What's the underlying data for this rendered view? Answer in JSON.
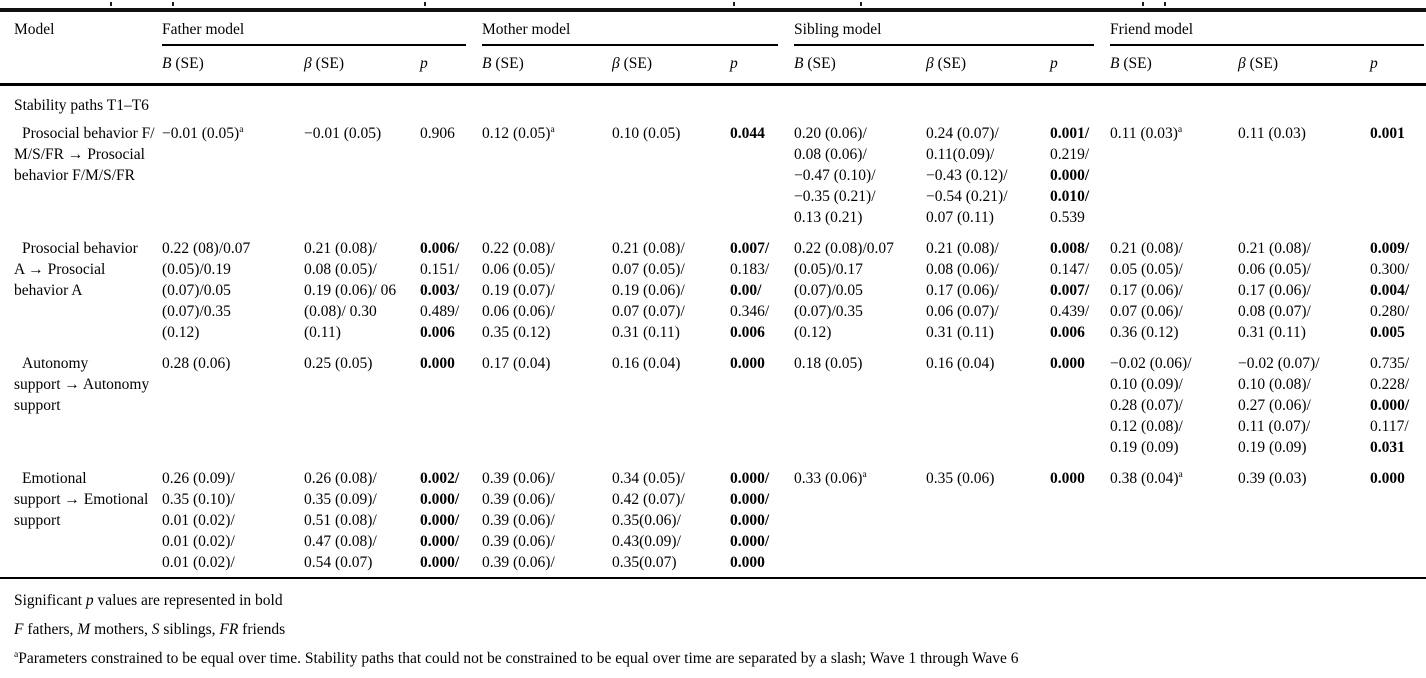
{
  "table": {
    "model_column_header": "Model",
    "groups": [
      {
        "key": "father",
        "label": "Father model"
      },
      {
        "key": "mother",
        "label": "Mother model"
      },
      {
        "key": "sibling",
        "label": "Sibling model"
      },
      {
        "key": "friend",
        "label": "Friend model"
      }
    ],
    "stat_headers": [
      {
        "key": "b",
        "segments": [
          {
            "t": "B",
            "i": true
          },
          {
            "t": " (SE)"
          }
        ]
      },
      {
        "key": "beta",
        "segments": [
          {
            "t": "β",
            "i": true
          },
          {
            "t": " (SE)"
          }
        ]
      },
      {
        "key": "p",
        "segments": [
          {
            "t": "p",
            "i": true
          }
        ]
      }
    ],
    "section_header": "Stability paths T1–T6",
    "rows": [
      {
        "model_lines": [
          "Prosocial behavior F/",
          "M/S/FR → Prosocial",
          "behavior F/M/S/FR"
        ],
        "father": {
          "b": [
            {
              "t": "−0.01 (0.05)",
              "sup": "a"
            }
          ],
          "beta": [
            {
              "t": "−0.01 (0.05)"
            }
          ],
          "p": [
            {
              "t": "0.906"
            }
          ]
        },
        "mother": {
          "b": [
            {
              "t": "0.12 (0.05)",
              "sup": "a"
            }
          ],
          "beta": [
            {
              "t": "0.10 (0.05)"
            }
          ],
          "p": [
            {
              "t": "0.044",
              "bold": true
            }
          ]
        },
        "sibling": {
          "b": [
            {
              "t": "0.20 (0.06)/"
            },
            {
              "t": "0.08 (0.06)/"
            },
            {
              "t": "−0.47 (0.10)/"
            },
            {
              "t": "−0.35 (0.21)/"
            },
            {
              "t": "0.13 (0.21)"
            }
          ],
          "beta": [
            {
              "t": "0.24 (0.07)/"
            },
            {
              "t": "0.11(0.09)/"
            },
            {
              "t": "−0.43 (0.12)/"
            },
            {
              "t": "−0.54 (0.21)/"
            },
            {
              "t": "0.07 (0.11)"
            }
          ],
          "p": [
            {
              "t": "0.001/",
              "bold": true
            },
            {
              "t": "0.219/"
            },
            {
              "t": "0.000/",
              "bold": true
            },
            {
              "t": "0.010/",
              "bold": true
            },
            {
              "t": "0.539"
            }
          ]
        },
        "friend": {
          "b": [
            {
              "t": "0.11 (0.03)",
              "sup": "a"
            }
          ],
          "beta": [
            {
              "t": "0.11 (0.03)"
            }
          ],
          "p": [
            {
              "t": "0.001",
              "bold": true
            }
          ]
        }
      },
      {
        "model_lines": [
          "Prosocial behavior",
          "A → Prosocial",
          "behavior A"
        ],
        "father": {
          "b": [
            {
              "t": "0.22 (08)/0.07"
            },
            {
              "t": "(0.05)/0.19"
            },
            {
              "t": "(0.07)/0.05"
            },
            {
              "t": "(0.07)/0.35"
            },
            {
              "t": "(0.12)"
            }
          ],
          "beta": [
            {
              "t": "0.21 (0.08)/"
            },
            {
              "t": "0.08 (0.05)/"
            },
            {
              "t": "0.19 (0.06)/ 06"
            },
            {
              "t": "(0.08)/ 0.30"
            },
            {
              "t": "(0.11)"
            }
          ],
          "p": [
            {
              "t": "0.006/",
              "bold": true
            },
            {
              "t": "0.151/"
            },
            {
              "t": "0.003/",
              "bold": true
            },
            {
              "t": "0.489/"
            },
            {
              "t": "0.006",
              "bold": true
            }
          ]
        },
        "mother": {
          "b": [
            {
              "t": "0.22 (0.08)/"
            },
            {
              "t": "0.06 (0.05)/"
            },
            {
              "t": "0.19 (0.07)/"
            },
            {
              "t": "0.06 (0.06)/"
            },
            {
              "t": "0.35 (0.12)"
            }
          ],
          "beta": [
            {
              "t": "0.21 (0.08)/"
            },
            {
              "t": "0.07 (0.05)/"
            },
            {
              "t": "0.19 (0.06)/"
            },
            {
              "t": "0.07 (0.07)/"
            },
            {
              "t": "0.31 (0.11)"
            }
          ],
          "p": [
            {
              "t": "0.007/",
              "bold": true
            },
            {
              "t": "0.183/"
            },
            {
              "t": "0.00/",
              "bold": true
            },
            {
              "t": "0.346/"
            },
            {
              "t": "0.006",
              "bold": true
            }
          ]
        },
        "sibling": {
          "b": [
            {
              "t": "0.22 (0.08)/0.07"
            },
            {
              "t": "(0.05)/0.17"
            },
            {
              "t": "(0.07)/0.05"
            },
            {
              "t": "(0.07)/0.35"
            },
            {
              "t": "(0.12)"
            }
          ],
          "beta": [
            {
              "t": "0.21 (0.08)/"
            },
            {
              "t": "0.08 (0.06)/"
            },
            {
              "t": "0.17 (0.06)/"
            },
            {
              "t": "0.06 (0.07)/"
            },
            {
              "t": "0.31 (0.11)"
            }
          ],
          "p": [
            {
              "t": "0.008/",
              "bold": true
            },
            {
              "t": "0.147/"
            },
            {
              "t": "0.007/",
              "bold": true
            },
            {
              "t": "0.439/"
            },
            {
              "t": "0.006",
              "bold": true
            }
          ]
        },
        "friend": {
          "b": [
            {
              "t": "0.21 (0.08)/"
            },
            {
              "t": "0.05 (0.05)/"
            },
            {
              "t": "0.17 (0.06)/"
            },
            {
              "t": "0.07 (0.06)/"
            },
            {
              "t": "0.36 (0.12)"
            }
          ],
          "beta": [
            {
              "t": "0.21 (0.08)/"
            },
            {
              "t": "0.06 (0.05)/"
            },
            {
              "t": "0.17 (0.06)/"
            },
            {
              "t": "0.08 (0.07)/"
            },
            {
              "t": "0.31 (0.11)"
            }
          ],
          "p": [
            {
              "t": "0.009/",
              "bold": true
            },
            {
              "t": "0.300/"
            },
            {
              "t": "0.004/",
              "bold": true
            },
            {
              "t": "0.280/"
            },
            {
              "t": "0.005",
              "bold": true
            }
          ]
        }
      },
      {
        "model_lines": [
          "Autonomy",
          "support → Autonomy",
          "support"
        ],
        "father": {
          "b": [
            {
              "t": "0.28 (0.06)"
            }
          ],
          "beta": [
            {
              "t": "0.25 (0.05)"
            }
          ],
          "p": [
            {
              "t": "0.000",
              "bold": true
            }
          ]
        },
        "mother": {
          "b": [
            {
              "t": "0.17 (0.04)"
            }
          ],
          "beta": [
            {
              "t": "0.16 (0.04)"
            }
          ],
          "p": [
            {
              "t": "0.000",
              "bold": true
            }
          ]
        },
        "sibling": {
          "b": [
            {
              "t": "0.18 (0.05)"
            }
          ],
          "beta": [
            {
              "t": "0.16 (0.04)"
            }
          ],
          "p": [
            {
              "t": "0.000",
              "bold": true
            }
          ]
        },
        "friend": {
          "b": [
            {
              "t": "−0.02 (0.06)/"
            },
            {
              "t": "0.10 (0.09)/"
            },
            {
              "t": "0.28 (0.07)/"
            },
            {
              "t": "0.12 (0.08)/"
            },
            {
              "t": "0.19 (0.09)"
            }
          ],
          "beta": [
            {
              "t": "−0.02 (0.07)/"
            },
            {
              "t": "0.10 (0.08)/"
            },
            {
              "t": "0.27 (0.06)/"
            },
            {
              "t": "0.11 (0.07)/"
            },
            {
              "t": "0.19 (0.09)"
            }
          ],
          "p": [
            {
              "t": "0.735/"
            },
            {
              "t": "0.228/"
            },
            {
              "t": "0.000/",
              "bold": true
            },
            {
              "t": "0.117/"
            },
            {
              "t": "0.031",
              "bold": true
            }
          ]
        }
      },
      {
        "model_lines": [
          "Emotional",
          "support → Emotional",
          "support"
        ],
        "father": {
          "b": [
            {
              "t": "0.26 (0.09)/"
            },
            {
              "t": "0.35 (0.10)/"
            },
            {
              "t": "0.01 (0.02)/"
            },
            {
              "t": "0.01 (0.02)/"
            },
            {
              "t": "0.01 (0.02)/"
            }
          ],
          "beta": [
            {
              "t": "0.26 (0.08)/"
            },
            {
              "t": "0.35 (0.09)/"
            },
            {
              "t": "0.51 (0.08)/"
            },
            {
              "t": "0.47 (0.08)/"
            },
            {
              "t": "0.54 (0.07)"
            }
          ],
          "p": [
            {
              "t": "0.002/",
              "bold": true
            },
            {
              "t": "0.000/",
              "bold": true
            },
            {
              "t": "0.000/",
              "bold": true
            },
            {
              "t": "0.000/",
              "bold": true
            },
            {
              "t": "0.000/",
              "bold": true
            }
          ]
        },
        "mother": {
          "b": [
            {
              "t": "0.39 (0.06)/"
            },
            {
              "t": "0.39 (0.06)/"
            },
            {
              "t": "0.39 (0.06)/"
            },
            {
              "t": "0.39 (0.06)/"
            },
            {
              "t": "0.39 (0.06)/"
            }
          ],
          "beta": [
            {
              "t": "0.34 (0.05)/"
            },
            {
              "t": "0.42 (0.07)/"
            },
            {
              "t": "0.35(0.06)/"
            },
            {
              "t": "0.43(0.09)/"
            },
            {
              "t": "0.35(0.07)"
            }
          ],
          "p": [
            {
              "t": "0.000/",
              "bold": true
            },
            {
              "t": "0.000/",
              "bold": true
            },
            {
              "t": "0.000/",
              "bold": true
            },
            {
              "t": "0.000/",
              "bold": true
            },
            {
              "t": "0.000",
              "bold": true
            }
          ]
        },
        "sibling": {
          "b": [
            {
              "t": "0.33 (0.06)",
              "sup": "a"
            }
          ],
          "beta": [
            {
              "t": "0.35 (0.06)"
            }
          ],
          "p": [
            {
              "t": "0.000",
              "bold": true
            }
          ]
        },
        "friend": {
          "b": [
            {
              "t": "0.38 (0.04)",
              "sup": "a"
            }
          ],
          "beta": [
            {
              "t": "0.39 (0.03)"
            }
          ],
          "p": [
            {
              "t": "0.000",
              "bold": true
            }
          ]
        }
      }
    ]
  },
  "footnotes": [
    {
      "name": "footnote-bold-significance",
      "segments": [
        {
          "t": "Significant "
        },
        {
          "t": "p",
          "i": true
        },
        {
          "t": " values are represented in bold"
        }
      ]
    },
    {
      "name": "footnote-abbreviations",
      "segments": [
        {
          "t": "F",
          "i": true
        },
        {
          "t": " fathers, "
        },
        {
          "t": "M",
          "i": true
        },
        {
          "t": " mothers, "
        },
        {
          "t": "S",
          "i": true
        },
        {
          "t": " siblings, "
        },
        {
          "t": "FR",
          "i": true
        },
        {
          "t": " friends"
        }
      ]
    },
    {
      "name": "footnote-constrained-parameters",
      "segments": [
        {
          "t": "a",
          "sup": true
        },
        {
          "t": "Parameters constrained to be equal over time. Stability paths that could not be constrained to be equal over time are separated by a slash; Wave 1 through Wave 6"
        }
      ]
    }
  ]
}
